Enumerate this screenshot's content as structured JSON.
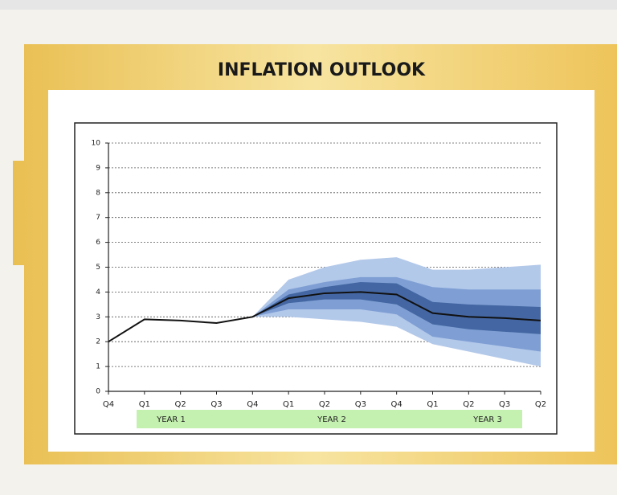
{
  "chart_data": {
    "type": "fan",
    "title": "INFLATION OUTLOOK",
    "categories": [
      "Q4",
      "Q1",
      "Q2",
      "Q3",
      "Q4",
      "Q1",
      "Q2",
      "Q3",
      "Q4",
      "Q1",
      "Q2",
      "Q3",
      "Q2"
    ],
    "values": [
      2.0,
      2.9,
      2.85,
      2.75,
      3.0,
      3.75,
      3.95,
      4.0,
      3.9,
      3.15,
      3.0,
      2.95,
      2.85
    ],
    "color": "#111111",
    "bands": [
      {
        "color": "#b3c9ea",
        "upper": [
          null,
          null,
          null,
          null,
          3.0,
          4.5,
          5.0,
          5.3,
          5.4,
          4.9,
          4.9,
          5.0,
          5.1
        ],
        "lower": [
          null,
          null,
          null,
          null,
          3.0,
          3.0,
          2.9,
          2.8,
          2.6,
          1.9,
          1.6,
          1.3,
          1.0
        ]
      },
      {
        "color": "#7f9fd4",
        "upper": [
          null,
          null,
          null,
          null,
          3.0,
          4.1,
          4.4,
          4.6,
          4.6,
          4.2,
          4.1,
          4.1,
          4.1
        ],
        "lower": [
          null,
          null,
          null,
          null,
          3.0,
          3.3,
          3.3,
          3.3,
          3.1,
          2.2,
          2.0,
          1.8,
          1.6
        ]
      },
      {
        "color": "#4467a3",
        "upper": [
          null,
          null,
          null,
          null,
          3.0,
          3.9,
          4.2,
          4.4,
          4.35,
          3.6,
          3.5,
          3.45,
          3.4
        ],
        "lower": [
          null,
          null,
          null,
          null,
          3.0,
          3.55,
          3.7,
          3.7,
          3.5,
          2.7,
          2.5,
          2.4,
          2.3
        ]
      }
    ],
    "periods": [
      "YEAR 1",
      "YEAR 2",
      "YEAR 3"
    ],
    "ylim": [
      0,
      10
    ],
    "yticks": [
      0,
      1,
      2,
      3,
      4,
      5,
      6,
      7,
      8,
      9,
      10
    ],
    "grid": true
  }
}
